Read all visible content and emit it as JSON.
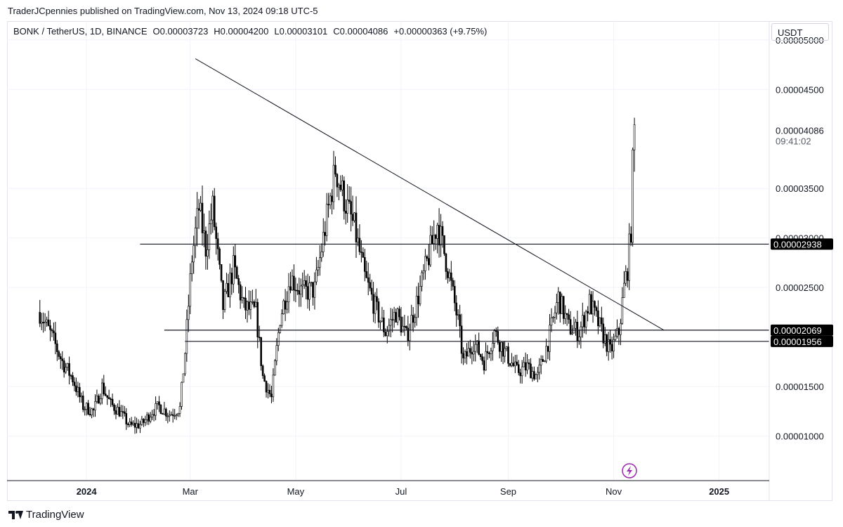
{
  "header": {
    "published": "TraderJCpennies published on TradingView.com, Nov 13, 2024 09:18 UTC-5"
  },
  "legend": {
    "symbol": "BONK / TetherUS, 1D, BINANCE",
    "open": "O0.00003723",
    "high": "H0.00004200",
    "low": "L0.00003101",
    "close": "C0.00004086",
    "change": "+0.00000363 (+9.75%)"
  },
  "currency": "USDT",
  "footer": {
    "brand": "TradingView"
  },
  "price_badges": {
    "current_price": "0.00004086",
    "countdown": "09:41:02",
    "level_1": "0.00002938",
    "level_2": "0.00002069",
    "level_3": "0.00001956"
  },
  "colors": {
    "candle": "#000000",
    "text": "#131722",
    "grid": "#f0f3fa",
    "badge": "#000000",
    "lightning": "#9c27b0"
  },
  "chart_data": {
    "type": "candlestick",
    "symbol": "BONK / TetherUS",
    "interval": "1D",
    "exchange": "BINANCE",
    "y_ticks": [
      "0.00001000",
      "0.00001500",
      "0.00002500",
      "0.00003000",
      "0.00003500",
      "0.00004500",
      "0.00005000"
    ],
    "y_tick_values": [
      1e-05,
      1.5e-05,
      2.5e-05,
      3e-05,
      3.5e-05,
      4.5e-05,
      5e-05
    ],
    "ylim": [
      5.5e-06,
      5.19e-05
    ],
    "x_ticks": [
      {
        "label": "2024",
        "date": "2024-01-01"
      },
      {
        "label": "Mar",
        "date": "2024-03-01"
      },
      {
        "label": "May",
        "date": "2024-05-01"
      },
      {
        "label": "Jul",
        "date": "2024-07-01"
      },
      {
        "label": "Sep",
        "date": "2024-09-01"
      },
      {
        "label": "Nov",
        "date": "2024-11-01"
      },
      {
        "label": "2025",
        "date": "2025-01-01"
      }
    ],
    "xlim": [
      "2023-11-16",
      "2025-01-30"
    ],
    "price_path": [
      [
        "2023-12-05",
        2.25e-05
      ],
      [
        "2023-12-12",
        2e-05
      ],
      [
        "2023-12-18",
        1.75e-05
      ],
      [
        "2023-12-24",
        1.58e-05
      ],
      [
        "2023-12-30",
        1.3e-05
      ],
      [
        "2024-01-05",
        1.25e-05
      ],
      [
        "2024-01-10",
        1.5e-05
      ],
      [
        "2024-01-15",
        1.32e-05
      ],
      [
        "2024-01-20",
        1.25e-05
      ],
      [
        "2024-01-26",
        1.1e-05
      ],
      [
        "2024-02-02",
        1.12e-05
      ],
      [
        "2024-02-08",
        1.25e-05
      ],
      [
        "2024-02-12",
        1.3e-05
      ],
      [
        "2024-02-18",
        1.22e-05
      ],
      [
        "2024-02-24",
        1.28e-05
      ],
      [
        "2024-02-27",
        1.85e-05
      ],
      [
        "2024-03-02",
        2.8e-05
      ],
      [
        "2024-03-06",
        3.3e-05
      ],
      [
        "2024-03-10",
        2.9e-05
      ],
      [
        "2024-03-14",
        3.3e-05
      ],
      [
        "2024-03-20",
        2.3e-05
      ],
      [
        "2024-03-26",
        2.7e-05
      ],
      [
        "2024-04-01",
        2.3e-05
      ],
      [
        "2024-04-08",
        2.25e-05
      ],
      [
        "2024-04-12",
        1.6e-05
      ],
      [
        "2024-04-17",
        1.38e-05
      ],
      [
        "2024-04-22",
        2.2e-05
      ],
      [
        "2024-04-28",
        2.6e-05
      ],
      [
        "2024-05-05",
        2.45e-05
      ],
      [
        "2024-05-12",
        2.48e-05
      ],
      [
        "2024-05-18",
        3.1e-05
      ],
      [
        "2024-05-24",
        3.7e-05
      ],
      [
        "2024-05-29",
        3.4e-05
      ],
      [
        "2024-06-04",
        3.1e-05
      ],
      [
        "2024-06-10",
        2.6e-05
      ],
      [
        "2024-06-16",
        2.3e-05
      ],
      [
        "2024-06-22",
        2.05e-05
      ],
      [
        "2024-06-28",
        2.25e-05
      ],
      [
        "2024-07-04",
        2e-05
      ],
      [
        "2024-07-10",
        2.35e-05
      ],
      [
        "2024-07-16",
        2.75e-05
      ],
      [
        "2024-07-22",
        3.15e-05
      ],
      [
        "2024-07-28",
        2.7e-05
      ],
      [
        "2024-08-03",
        2.15e-05
      ],
      [
        "2024-08-06",
        1.75e-05
      ],
      [
        "2024-08-12",
        1.95e-05
      ],
      [
        "2024-08-18",
        1.75e-05
      ],
      [
        "2024-08-24",
        2.05e-05
      ],
      [
        "2024-08-30",
        1.85e-05
      ],
      [
        "2024-09-06",
        1.65e-05
      ],
      [
        "2024-09-12",
        1.7e-05
      ],
      [
        "2024-09-18",
        1.6e-05
      ],
      [
        "2024-09-24",
        1.95e-05
      ],
      [
        "2024-09-30",
        2.4e-05
      ],
      [
        "2024-10-06",
        2.1e-05
      ],
      [
        "2024-10-12",
        2.05e-05
      ],
      [
        "2024-10-18",
        2.35e-05
      ],
      [
        "2024-10-24",
        2.1e-05
      ],
      [
        "2024-10-30",
        1.85e-05
      ],
      [
        "2024-11-04",
        2.05e-05
      ],
      [
        "2024-11-07",
        2.5e-05
      ],
      [
        "2024-11-09",
        2.7e-05
      ],
      [
        "2024-11-11",
        3.1e-05
      ],
      [
        "2024-11-12",
        3.72e-05
      ],
      [
        "2024-11-13",
        4.086e-05
      ]
    ],
    "trendline": {
      "from": [
        "2024-03-04",
        4.81e-05
      ],
      "to": [
        "2024-11-30",
        2.07e-05
      ]
    },
    "horizontal_levels": [
      {
        "value": 2.938e-05,
        "from": "2024-02-01"
      },
      {
        "value": 2.069e-05,
        "from": "2024-02-15"
      },
      {
        "value": 1.956e-05,
        "from": "2024-02-27"
      }
    ],
    "grid": true
  }
}
